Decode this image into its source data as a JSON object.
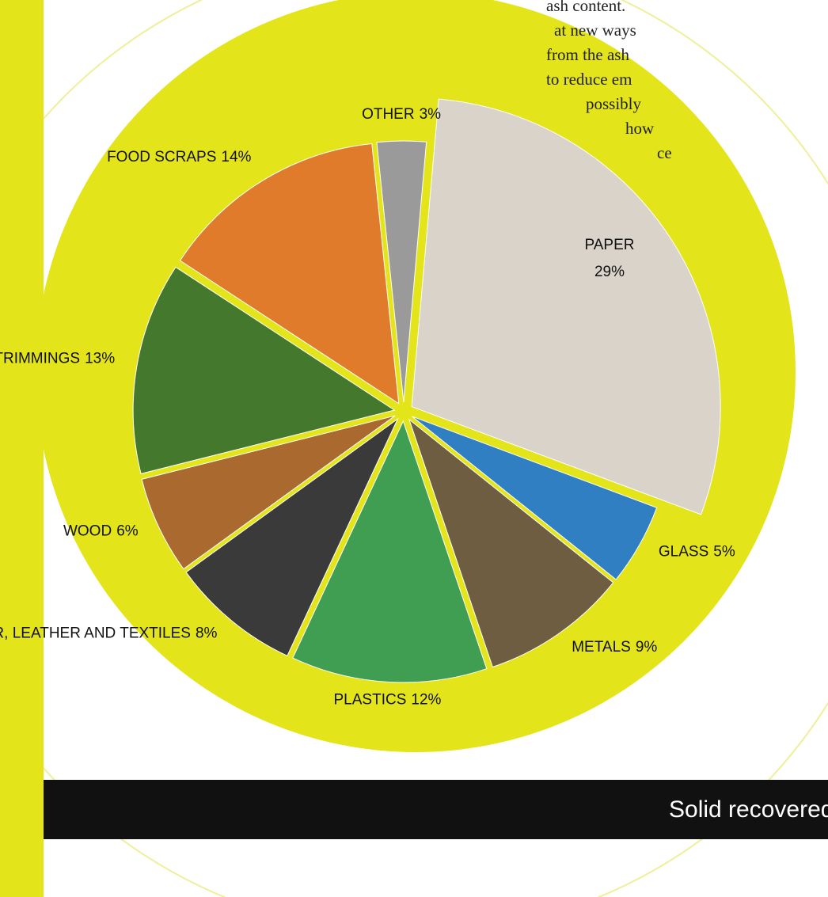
{
  "chart_data": {
    "type": "pie",
    "categories": [
      "PAPER",
      "GLASS",
      "METALS",
      "PLASTICS",
      "RUBBER, LEATHER AND TEXTILES",
      "WOOD",
      "YARD TRIMMINGS",
      "FOOD SCRAPS",
      "OTHER"
    ],
    "values": [
      29,
      5,
      9,
      12,
      8,
      6,
      13,
      14,
      3
    ],
    "value_labels": [
      "29%",
      "5%",
      "9%",
      "12%",
      "8%",
      "6%",
      "13%",
      "14%",
      "3%"
    ],
    "colors": [
      "#d9d3c9",
      "#2f7fc2",
      "#6e5d40",
      "#3f9e52",
      "#3a3a3a",
      "#a9692f",
      "#44792d",
      "#e07b2c",
      "#9a9a9a"
    ]
  },
  "side_text": [
    "ash content.",
    "at new ways",
    "from the ash",
    "to reduce em",
    "possibly",
    "how",
    "ce"
  ],
  "footer_text": "Solid recovered"
}
